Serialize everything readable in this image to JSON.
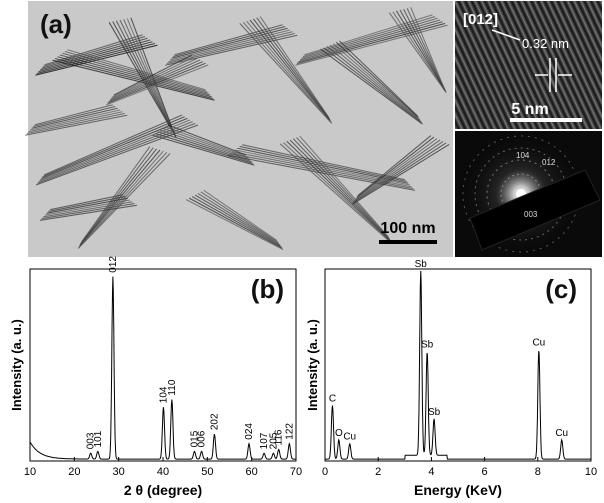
{
  "panels": {
    "a": {
      "label": "(a)",
      "scale_bar": "100 nm",
      "hrtem": {
        "direction": "[012]",
        "spacing": "0.32 nm",
        "scale_bar": "5 nm"
      },
      "saed": {
        "rings": [
          "104",
          "012",
          "003"
        ]
      }
    },
    "b": {
      "label": "(b)"
    },
    "c": {
      "label": "(c)"
    }
  },
  "chart_data": [
    {
      "type": "line",
      "panel": "b",
      "xlabel": "2 θ (degree)",
      "ylabel": "Intensity (a. u.)",
      "xlim": [
        10,
        70
      ],
      "ylim": [
        0,
        100
      ],
      "xticks": [
        10,
        20,
        30,
        40,
        50,
        60,
        70
      ],
      "grid": false,
      "legend": "none",
      "peaks": [
        {
          "x": 23.7,
          "y": 3,
          "label": "003"
        },
        {
          "x": 25.3,
          "y": 4,
          "label": "101"
        },
        {
          "x": 28.7,
          "y": 95,
          "label": "012"
        },
        {
          "x": 40.1,
          "y": 27,
          "label": "104"
        },
        {
          "x": 42.0,
          "y": 31,
          "label": "110"
        },
        {
          "x": 47.1,
          "y": 4,
          "label": "015"
        },
        {
          "x": 48.7,
          "y": 4,
          "label": "006"
        },
        {
          "x": 51.6,
          "y": 13,
          "label": "202"
        },
        {
          "x": 59.4,
          "y": 8,
          "label": "024"
        },
        {
          "x": 62.8,
          "y": 3,
          "label": "107"
        },
        {
          "x": 64.9,
          "y": 3,
          "label": "205"
        },
        {
          "x": 66.1,
          "y": 5,
          "label": "116"
        },
        {
          "x": 68.5,
          "y": 8,
          "label": "122"
        }
      ]
    },
    {
      "type": "line",
      "panel": "c",
      "xlabel": "Energy (KeV)",
      "ylabel": "Intensity (a. u.)",
      "xlim": [
        0,
        10
      ],
      "ylim": [
        0,
        100
      ],
      "xticks": [
        0,
        2,
        4,
        6,
        8,
        10
      ],
      "grid": false,
      "legend": "none",
      "peaks": [
        {
          "x": 0.28,
          "y": 28,
          "label": "C"
        },
        {
          "x": 0.52,
          "y": 10,
          "label": "O"
        },
        {
          "x": 0.93,
          "y": 8,
          "label": "Cu"
        },
        {
          "x": 3.6,
          "y": 96,
          "label": "Sb"
        },
        {
          "x": 3.84,
          "y": 54,
          "label": "Sb"
        },
        {
          "x": 4.1,
          "y": 19,
          "label": "Sb"
        },
        {
          "x": 8.04,
          "y": 57,
          "label": "Cu"
        },
        {
          "x": 8.9,
          "y": 10,
          "label": "Cu"
        }
      ]
    }
  ]
}
